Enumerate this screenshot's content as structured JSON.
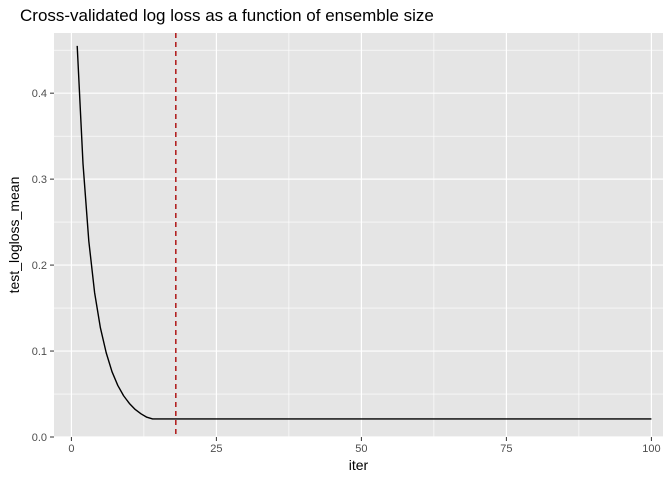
{
  "chart_data": {
    "type": "line",
    "title": "Cross-validated log loss as a function of ensemble size",
    "xlabel": "iter",
    "ylabel": "test_logloss_mean",
    "xlim": [
      -3,
      102
    ],
    "ylim": [
      0,
      0.47
    ],
    "x_ticks": [
      0,
      25,
      50,
      75,
      100
    ],
    "y_ticks": [
      0.0,
      0.1,
      0.2,
      0.3,
      0.4
    ],
    "y_tick_labels": [
      "0.0",
      "0.1",
      "0.2",
      "0.3",
      "0.4"
    ],
    "grid": true,
    "legend": "none",
    "series": [
      {
        "x": [
          1,
          2,
          3,
          4,
          5,
          6,
          7,
          8,
          9,
          10,
          11,
          12,
          13,
          14,
          15,
          16,
          17,
          18,
          19,
          20,
          25,
          30,
          40,
          50,
          60,
          70,
          80,
          90,
          100
        ],
        "values": [
          0.455,
          0.318,
          0.228,
          0.168,
          0.127,
          0.098,
          0.076,
          0.06,
          0.048,
          0.039,
          0.032,
          0.027,
          0.023,
          0.021,
          0.021,
          0.021,
          0.021,
          0.021,
          0.021,
          0.021,
          0.021,
          0.021,
          0.021,
          0.021,
          0.021,
          0.021,
          0.021,
          0.021,
          0.021
        ],
        "color": "#000000"
      }
    ],
    "vline": {
      "x": 18,
      "color": "#b22222",
      "style": "dashed"
    },
    "panel_background": "#e5e5e5",
    "grid_color": "#ffffff"
  }
}
